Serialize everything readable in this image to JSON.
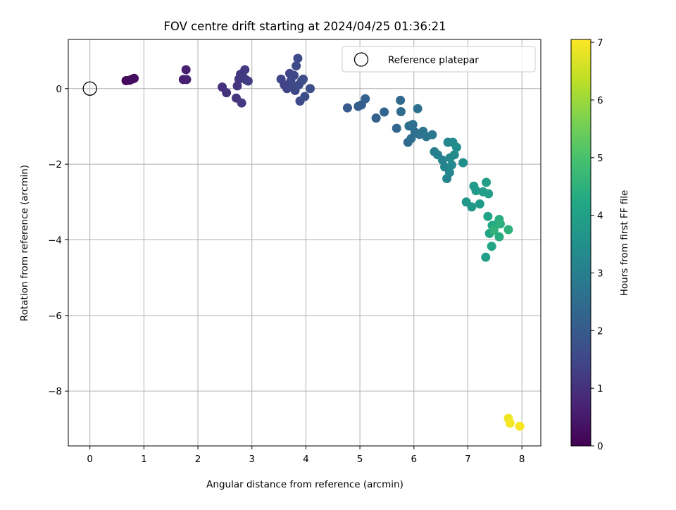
{
  "chart_data": {
    "type": "scatter",
    "title": "FOV centre drift starting at 2024/04/25 01:36:21",
    "xlabel": "Angular distance from reference (arcmin)",
    "ylabel": "Rotation from reference (arcmin)",
    "xlim": [
      -0.4,
      8.35
    ],
    "ylim": [
      -9.45,
      1.3
    ],
    "xticks": [
      0,
      1,
      2,
      3,
      4,
      5,
      6,
      7,
      8
    ],
    "yticks": [
      -8,
      -6,
      -4,
      -2,
      0
    ],
    "grid": true,
    "legend": {
      "location": "upper right",
      "entries": [
        "Reference platepar"
      ]
    },
    "reference_point": {
      "x": 0,
      "y": 0,
      "label": "Reference platepar"
    },
    "colorbar": {
      "label": "Hours from first FF file",
      "colormap": "viridis",
      "range": [
        0,
        7.05
      ],
      "ticks": [
        0,
        1,
        2,
        3,
        4,
        5,
        6,
        7
      ]
    },
    "series": [
      {
        "points": [
          {
            "x": 0.67,
            "y": 0.21,
            "t": 0.1
          },
          {
            "x": 0.73,
            "y": 0.22,
            "t": 0.15
          },
          {
            "x": 0.78,
            "y": 0.25,
            "t": 0.2
          },
          {
            "x": 0.82,
            "y": 0.27,
            "t": 0.25
          },
          {
            "x": 1.73,
            "y": 0.24,
            "t": 0.6
          },
          {
            "x": 1.78,
            "y": 0.5,
            "t": 0.62
          },
          {
            "x": 1.79,
            "y": 0.24,
            "t": 0.65
          },
          {
            "x": 2.45,
            "y": 0.04,
            "t": 1.0
          },
          {
            "x": 2.53,
            "y": -0.11,
            "t": 1.02
          },
          {
            "x": 2.71,
            "y": -0.25,
            "t": 1.05
          },
          {
            "x": 2.73,
            "y": 0.07,
            "t": 1.08
          },
          {
            "x": 2.76,
            "y": 0.25,
            "t": 1.1
          },
          {
            "x": 2.79,
            "y": 0.38,
            "t": 1.12
          },
          {
            "x": 2.81,
            "y": -0.38,
            "t": 1.15
          },
          {
            "x": 2.84,
            "y": 0.3,
            "t": 1.18
          },
          {
            "x": 2.87,
            "y": 0.5,
            "t": 1.2
          },
          {
            "x": 2.89,
            "y": 0.23,
            "t": 1.22
          },
          {
            "x": 2.93,
            "y": 0.2,
            "t": 1.25
          },
          {
            "x": 3.54,
            "y": 0.25,
            "t": 1.4
          },
          {
            "x": 3.6,
            "y": 0.1,
            "t": 1.42
          },
          {
            "x": 3.65,
            "y": 0.0,
            "t": 1.44
          },
          {
            "x": 3.7,
            "y": 0.4,
            "t": 1.46
          },
          {
            "x": 3.72,
            "y": 0.2,
            "t": 1.48
          },
          {
            "x": 3.75,
            "y": 0.05,
            "t": 1.5
          },
          {
            "x": 3.78,
            "y": 0.35,
            "t": 1.52
          },
          {
            "x": 3.8,
            "y": -0.05,
            "t": 1.54
          },
          {
            "x": 3.82,
            "y": 0.6,
            "t": 1.56
          },
          {
            "x": 3.85,
            "y": 0.8,
            "t": 1.58
          },
          {
            "x": 3.87,
            "y": 0.1,
            "t": 1.6
          },
          {
            "x": 3.89,
            "y": -0.33,
            "t": 1.62
          },
          {
            "x": 3.92,
            "y": 0.2,
            "t": 1.64
          },
          {
            "x": 3.95,
            "y": 0.25,
            "t": 1.66
          },
          {
            "x": 3.98,
            "y": -0.21,
            "t": 1.68
          },
          {
            "x": 4.08,
            "y": 0.0,
            "t": 1.7
          },
          {
            "x": 4.77,
            "y": -0.51,
            "t": 2.0
          },
          {
            "x": 4.97,
            "y": -0.47,
            "t": 2.05
          },
          {
            "x": 5.03,
            "y": -0.43,
            "t": 2.1
          },
          {
            "x": 5.1,
            "y": -0.27,
            "t": 2.15
          },
          {
            "x": 5.3,
            "y": -0.78,
            "t": 2.2
          },
          {
            "x": 5.45,
            "y": -0.62,
            "t": 2.25
          },
          {
            "x": 5.68,
            "y": -1.05,
            "t": 2.35
          },
          {
            "x": 5.75,
            "y": -0.31,
            "t": 2.4
          },
          {
            "x": 5.76,
            "y": -0.61,
            "t": 2.42
          },
          {
            "x": 5.89,
            "y": -1.42,
            "t": 2.45
          },
          {
            "x": 5.91,
            "y": -0.99,
            "t": 2.5
          },
          {
            "x": 5.95,
            "y": -1.32,
            "t": 2.52
          },
          {
            "x": 5.98,
            "y": -0.95,
            "t": 2.55
          },
          {
            "x": 6.02,
            "y": -1.15,
            "t": 2.6
          },
          {
            "x": 6.07,
            "y": -0.53,
            "t": 2.62
          },
          {
            "x": 6.1,
            "y": -1.21,
            "t": 2.65
          },
          {
            "x": 6.17,
            "y": -1.13,
            "t": 2.7
          },
          {
            "x": 6.23,
            "y": -1.27,
            "t": 2.75
          },
          {
            "x": 6.34,
            "y": -1.22,
            "t": 2.8
          },
          {
            "x": 6.38,
            "y": -1.67,
            "t": 3.0
          },
          {
            "x": 6.44,
            "y": -1.75,
            "t": 3.05
          },
          {
            "x": 6.53,
            "y": -1.89,
            "t": 3.1
          },
          {
            "x": 6.57,
            "y": -2.07,
            "t": 3.15
          },
          {
            "x": 6.61,
            "y": -2.38,
            "t": 3.2
          },
          {
            "x": 6.63,
            "y": -1.42,
            "t": 3.22
          },
          {
            "x": 6.66,
            "y": -2.22,
            "t": 3.25
          },
          {
            "x": 6.67,
            "y": -1.83,
            "t": 3.28
          },
          {
            "x": 6.7,
            "y": -2.02,
            "t": 3.3
          },
          {
            "x": 6.72,
            "y": -1.42,
            "t": 3.32
          },
          {
            "x": 6.75,
            "y": -1.75,
            "t": 3.35
          },
          {
            "x": 6.79,
            "y": -1.55,
            "t": 3.38
          },
          {
            "x": 6.91,
            "y": -1.96,
            "t": 3.45
          },
          {
            "x": 6.97,
            "y": -3.0,
            "t": 3.7
          },
          {
            "x": 7.07,
            "y": -3.13,
            "t": 3.75
          },
          {
            "x": 7.11,
            "y": -2.58,
            "t": 3.8
          },
          {
            "x": 7.15,
            "y": -2.7,
            "t": 3.82
          },
          {
            "x": 7.22,
            "y": -3.05,
            "t": 3.85
          },
          {
            "x": 7.28,
            "y": -2.73,
            "t": 3.88
          },
          {
            "x": 7.34,
            "y": -2.48,
            "t": 3.9
          },
          {
            "x": 7.38,
            "y": -2.78,
            "t": 3.92
          },
          {
            "x": 7.33,
            "y": -4.46,
            "t": 4.0
          },
          {
            "x": 7.37,
            "y": -3.38,
            "t": 4.05
          },
          {
            "x": 7.4,
            "y": -3.83,
            "t": 4.1
          },
          {
            "x": 7.44,
            "y": -4.17,
            "t": 4.15
          },
          {
            "x": 7.45,
            "y": -3.62,
            "t": 4.2
          },
          {
            "x": 7.52,
            "y": -3.6,
            "t": 4.3
          },
          {
            "x": 7.58,
            "y": -3.92,
            "t": 4.35
          },
          {
            "x": 7.58,
            "y": -3.46,
            "t": 4.4
          },
          {
            "x": 7.6,
            "y": -3.58,
            "t": 4.45
          },
          {
            "x": 7.75,
            "y": -3.73,
            "t": 4.5
          },
          {
            "x": 7.48,
            "y": -3.75,
            "t": 4.55
          },
          {
            "x": 7.75,
            "y": -8.72,
            "t": 6.9
          },
          {
            "x": 7.78,
            "y": -8.85,
            "t": 6.95
          },
          {
            "x": 7.96,
            "y": -8.93,
            "t": 7.0
          }
        ]
      }
    ]
  }
}
